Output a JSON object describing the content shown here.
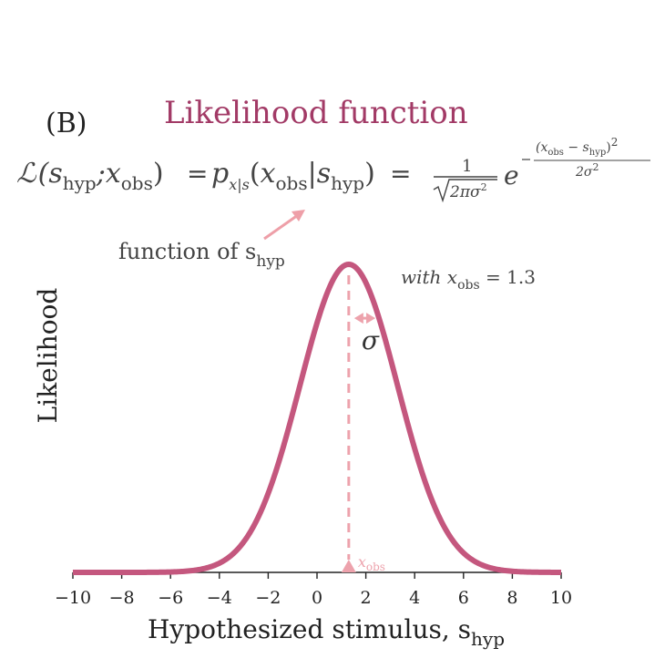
{
  "panel_label": "(B)",
  "title": "Likelihood function",
  "formula": {
    "lhs_script": "ℒ",
    "s": "s",
    "hyp": "hyp",
    "x": "x",
    "obs": "obs",
    "p": "p",
    "p_sub": "x|s",
    "equals": "=",
    "one": "1",
    "sqrt_arg": "2πσ",
    "two": "2",
    "e": "e",
    "exp_num_left": "(x",
    "exp_num_mid": " − s",
    "exp_num_right": ")",
    "exp_den": "2σ"
  },
  "annotation": {
    "function_of": "function of s",
    "function_of_sub": "hyp",
    "with": "with x",
    "with_sub": "obs",
    "with_value": " = 1.3",
    "sigma": "σ",
    "xobs_marker": "x",
    "xobs_marker_sub": "obs"
  },
  "colors": {
    "title": "#a23a66",
    "curve": "#c4577e",
    "marker": "#eda2ac",
    "arrow": "#ee9fa8",
    "axis": "#222222",
    "text": "#333333"
  },
  "chart_data": {
    "type": "line",
    "function": "gaussian",
    "mu": 1.3,
    "sigma": 2,
    "xlim": [
      -10,
      10
    ],
    "x_ticks": [
      -10,
      -8,
      -6,
      -4,
      -2,
      0,
      2,
      4,
      6,
      8,
      10
    ],
    "x_tick_labels": [
      "−10",
      "−8",
      "−6",
      "−4",
      "−2",
      "0",
      "2",
      "4",
      "6",
      "8",
      "10"
    ],
    "xlabel": "Hypothesized stimulus, s",
    "xlabel_sub": "hyp",
    "ylabel": "Likelihood",
    "grid": false
  }
}
